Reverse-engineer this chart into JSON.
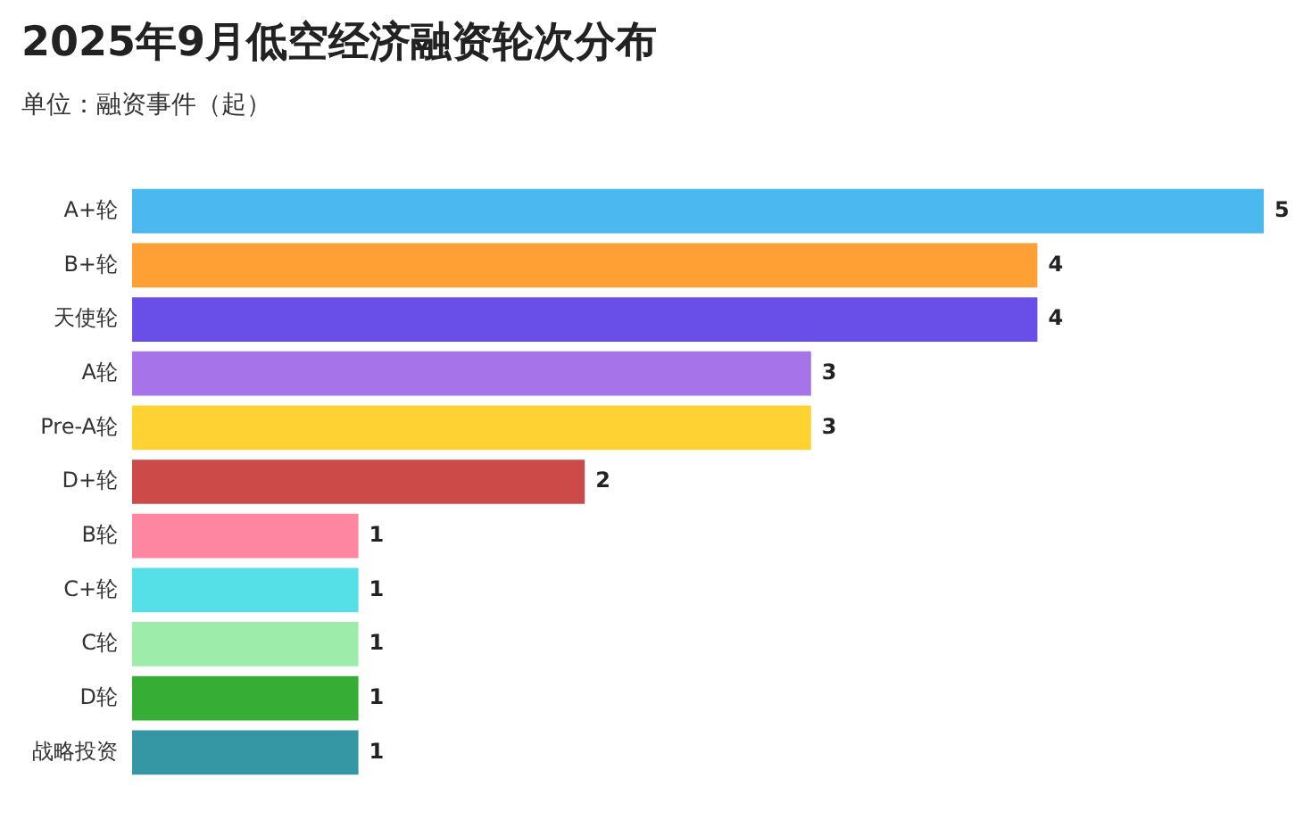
{
  "chart_data": {
    "type": "bar",
    "orientation": "horizontal",
    "title": "2025年9月低空经济融资轮次分布",
    "subtitle": "单位：融资事件（起）",
    "categories": [
      "A+轮",
      "B+轮",
      "天使轮",
      "A轮",
      "Pre-A轮",
      "D+轮",
      "B轮",
      "C+轮",
      "C轮",
      "D轮",
      "战略投资"
    ],
    "values": [
      5,
      4,
      4,
      3,
      3,
      2,
      1,
      1,
      1,
      1,
      1
    ],
    "colors": [
      "#4cb8f0",
      "#ffa034",
      "#6a4ee8",
      "#a673e8",
      "#ffd233",
      "#cc4a47",
      "#ff86a0",
      "#55e0e8",
      "#9eecaa",
      "#36ae36",
      "#3596a4"
    ],
    "xlim": [
      0,
      5
    ],
    "tick_labels": "y",
    "grid": false,
    "legend": false,
    "data_labels": true
  }
}
